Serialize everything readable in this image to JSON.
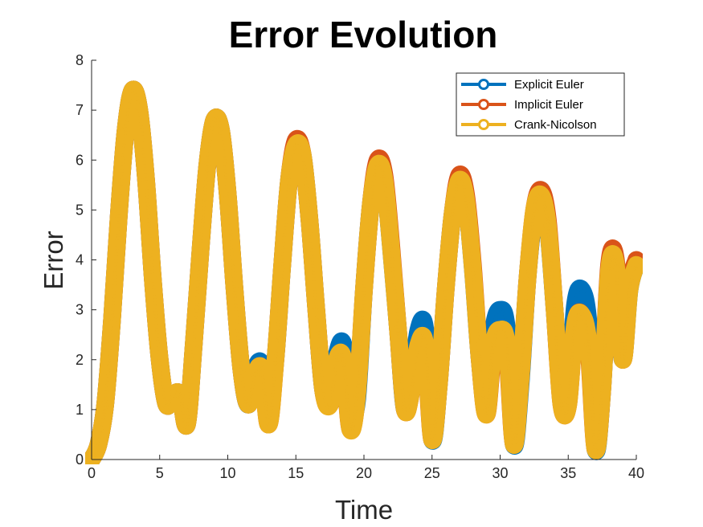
{
  "chart_data": {
    "type": "line",
    "title": "Error Evolution",
    "xlabel": "Time",
    "ylabel": "Error",
    "xlim": [
      0,
      40
    ],
    "ylim": [
      0,
      8
    ],
    "xticks": [
      "0",
      "5",
      "10",
      "15",
      "20",
      "25",
      "30",
      "35",
      "40"
    ],
    "yticks": [
      "0",
      "1",
      "2",
      "3",
      "4",
      "5",
      "6",
      "7",
      "8"
    ],
    "grid": false,
    "legend_position": "top-right",
    "marker": "circle",
    "series": [
      {
        "name": "Explicit Euler",
        "color": "#0072BD",
        "x": [
          0,
          0.5,
          1,
          1.5,
          2,
          2.5,
          3,
          3.5,
          4,
          4.5,
          5,
          5.5,
          6,
          6.5,
          7,
          7.5,
          8,
          8.5,
          9,
          9.5,
          10,
          10.5,
          11,
          11.5,
          12,
          12.5,
          13,
          13.5,
          14,
          14.5,
          15,
          15.5,
          16,
          16.5,
          17,
          17.5,
          18,
          18.5,
          19,
          19.5,
          20,
          20.5,
          21,
          21.5,
          22,
          22.5,
          23,
          23.5,
          24,
          24.5,
          25,
          25.5,
          26,
          26.5,
          27,
          27.5,
          28,
          28.5,
          29,
          29.5,
          30,
          30.5,
          31,
          31.5,
          32,
          32.5,
          33,
          33.5,
          34,
          34.5,
          35,
          35.5,
          36,
          36.5,
          37,
          37.5,
          38,
          38.5,
          39,
          39.5,
          40
        ],
        "y": [
          0,
          0.3,
          1.1,
          2.8,
          4.9,
          6.6,
          7.4,
          7.0,
          5.6,
          3.6,
          2.0,
          1.1,
          1.3,
          1.3,
          0.7,
          2.3,
          4.2,
          5.9,
          6.8,
          6.6,
          5.3,
          3.4,
          1.8,
          1.1,
          1.8,
          1.9,
          0.9,
          2.0,
          3.9,
          5.6,
          6.3,
          6.1,
          4.8,
          3.0,
          1.4,
          1.2,
          2.1,
          2.3,
          1.0,
          1.2,
          3.4,
          5.1,
          5.9,
          5.6,
          4.2,
          2.6,
          1.0,
          1.6,
          2.6,
          2.6,
          0.4,
          1.5,
          3.4,
          4.9,
          5.6,
          5.2,
          3.8,
          2.0,
          1.0,
          2.6,
          3.0,
          2.6,
          0.3,
          1.5,
          3.6,
          4.9,
          5.4,
          4.7,
          3.0,
          1.2,
          1.3,
          3.1,
          3.4,
          2.7,
          0.2,
          1.4,
          3.8,
          3.7,
          2.0,
          3.4,
          3.9
        ]
      },
      {
        "name": "Implicit Euler",
        "color": "#D95319",
        "x": [
          0,
          0.5,
          1,
          1.5,
          2,
          2.5,
          3,
          3.5,
          4,
          4.5,
          5,
          5.5,
          6,
          6.5,
          7,
          7.5,
          8,
          8.5,
          9,
          9.5,
          10,
          10.5,
          11,
          11.5,
          12,
          12.5,
          13,
          13.5,
          14,
          14.5,
          15,
          15.5,
          16,
          16.5,
          17,
          17.5,
          18,
          18.5,
          19,
          19.5,
          20,
          20.5,
          21,
          21.5,
          22,
          22.5,
          23,
          23.5,
          24,
          24.5,
          25,
          25.5,
          26,
          26.5,
          27,
          27.5,
          28,
          28.5,
          29,
          29.5,
          30,
          30.5,
          31,
          31.5,
          32,
          32.5,
          33,
          33.5,
          34,
          34.5,
          35,
          35.5,
          36,
          36.5,
          37,
          37.5,
          38,
          38.5,
          39,
          39.5,
          40
        ],
        "y": [
          0,
          0.3,
          1.1,
          2.8,
          4.9,
          6.6,
          7.4,
          7.0,
          5.6,
          3.6,
          2.0,
          1.1,
          1.3,
          1.3,
          0.7,
          2.3,
          4.2,
          5.9,
          6.8,
          6.6,
          5.3,
          3.4,
          1.8,
          1.1,
          1.7,
          1.8,
          0.7,
          2.0,
          3.9,
          5.6,
          6.4,
          6.1,
          4.8,
          3.0,
          1.4,
          1.1,
          1.9,
          1.9,
          0.6,
          1.3,
          3.4,
          5.1,
          6.0,
          5.7,
          4.3,
          2.6,
          1.0,
          1.4,
          2.3,
          2.2,
          0.4,
          1.5,
          3.4,
          4.9,
          5.7,
          5.3,
          3.9,
          2.0,
          0.9,
          2.2,
          2.6,
          2.2,
          0.3,
          1.6,
          3.6,
          5.0,
          5.4,
          4.8,
          3.0,
          1.1,
          1.1,
          2.7,
          2.9,
          2.2,
          0.2,
          1.4,
          3.9,
          4.0,
          2.0,
          3.5,
          4.0
        ]
      },
      {
        "name": "Crank-Nicolson",
        "color": "#EDB120",
        "x": [
          0,
          0.5,
          1,
          1.5,
          2,
          2.5,
          3,
          3.5,
          4,
          4.5,
          5,
          5.5,
          6,
          6.5,
          7,
          7.5,
          8,
          8.5,
          9,
          9.5,
          10,
          10.5,
          11,
          11.5,
          12,
          12.5,
          13,
          13.5,
          14,
          14.5,
          15,
          15.5,
          16,
          16.5,
          17,
          17.5,
          18,
          18.5,
          19,
          19.5,
          20,
          20.5,
          21,
          21.5,
          22,
          22.5,
          23,
          23.5,
          24,
          24.5,
          25,
          25.5,
          26,
          26.5,
          27,
          27.5,
          28,
          28.5,
          29,
          29.5,
          30,
          30.5,
          31,
          31.5,
          32,
          32.5,
          33,
          33.5,
          34,
          34.5,
          35,
          35.5,
          36,
          36.5,
          37,
          37.5,
          38,
          38.5,
          39,
          39.5,
          40
        ],
        "y": [
          0,
          0.3,
          1.1,
          2.8,
          4.9,
          6.6,
          7.4,
          7.0,
          5.6,
          3.6,
          2.0,
          1.1,
          1.3,
          1.3,
          0.7,
          2.3,
          4.2,
          5.9,
          6.8,
          6.6,
          5.3,
          3.4,
          1.8,
          1.1,
          1.7,
          1.8,
          0.7,
          2.0,
          3.9,
          5.6,
          6.3,
          6.1,
          4.8,
          3.0,
          1.4,
          1.1,
          2.0,
          2.0,
          0.6,
          1.3,
          3.4,
          5.1,
          5.9,
          5.6,
          4.2,
          2.6,
          1.0,
          1.4,
          2.3,
          2.3,
          0.4,
          1.5,
          3.4,
          4.9,
          5.6,
          5.2,
          3.8,
          2.0,
          0.9,
          2.3,
          2.6,
          2.3,
          0.3,
          1.6,
          3.6,
          5.0,
          5.3,
          4.7,
          3.0,
          1.1,
          1.1,
          2.7,
          2.9,
          2.3,
          0.2,
          1.4,
          3.8,
          3.9,
          2.0,
          3.4,
          3.9
        ]
      }
    ]
  }
}
